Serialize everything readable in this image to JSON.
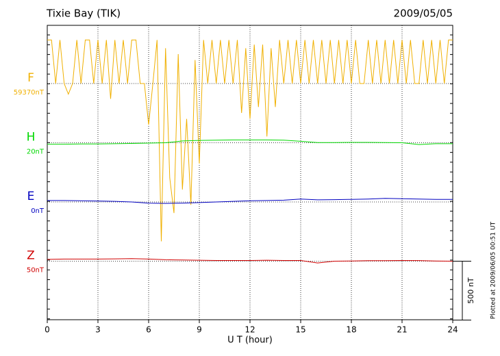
{
  "chart_data": {
    "type": "line",
    "title": "Tixie Bay (TIK)",
    "date": "2009/05/05",
    "xlabel": "U T (hour)",
    "footnote": "Plotted at 2009/06/05 00:51 UT",
    "xlim": [
      0,
      24
    ],
    "xticks": [
      0,
      3,
      6,
      9,
      12,
      15,
      18,
      21,
      24
    ],
    "grid": true,
    "scale_bar": {
      "value": 500,
      "label": "500 nT"
    },
    "series": [
      {
        "name": "F",
        "baseline_label": "59370nT",
        "color": "#f0b000",
        "x": [
          0,
          0.25,
          0.5,
          0.75,
          1,
          1.25,
          1.5,
          1.75,
          2,
          2.25,
          2.5,
          2.75,
          3,
          3.25,
          3.5,
          3.75,
          4,
          4.25,
          4.5,
          4.75,
          5,
          5.25,
          5.5,
          5.75,
          6,
          6.25,
          6.5,
          6.75,
          7,
          7.25,
          7.5,
          7.75,
          8,
          8.25,
          8.5,
          8.75,
          9,
          9.25,
          9.5,
          9.75,
          10,
          10.25,
          10.5,
          10.75,
          11,
          11.25,
          11.5,
          11.75,
          12,
          12.25,
          12.5,
          12.75,
          13,
          13.25,
          13.5,
          13.75,
          14,
          14.25,
          14.5,
          14.75,
          15,
          15.25,
          15.5,
          15.75,
          16,
          16.25,
          16.5,
          16.75,
          17,
          17.25,
          17.5,
          17.75,
          18,
          18.25,
          18.5,
          18.75,
          19,
          19.25,
          19.5,
          19.75,
          20,
          20.25,
          20.5,
          20.75,
          21,
          21.25,
          21.5,
          21.75,
          22,
          22.25,
          22.5,
          22.75,
          23,
          23.25,
          23.5,
          23.75,
          24
        ],
        "values": [
          370,
          370,
          0,
          370,
          0,
          -90,
          0,
          370,
          0,
          370,
          370,
          0,
          370,
          0,
          370,
          -130,
          370,
          0,
          370,
          0,
          370,
          370,
          0,
          0,
          -350,
          0,
          370,
          -1340,
          300,
          -800,
          -1100,
          250,
          -900,
          -300,
          -1030,
          200,
          -680,
          370,
          0,
          370,
          0,
          370,
          0,
          370,
          0,
          370,
          -250,
          300,
          -300,
          330,
          -200,
          330,
          -450,
          300,
          -200,
          370,
          0,
          370,
          0,
          370,
          0,
          370,
          0,
          370,
          0,
          370,
          0,
          370,
          0,
          370,
          0,
          370,
          0,
          370,
          0,
          0,
          370,
          0,
          370,
          0,
          370,
          0,
          370,
          0,
          370,
          0,
          370,
          0,
          0,
          370,
          0,
          370,
          0,
          370,
          0,
          370,
          370
        ]
      },
      {
        "name": "H",
        "baseline_label": "20nT",
        "color": "#00d800",
        "x": [
          0,
          1,
          2,
          3,
          4,
          5,
          6,
          7,
          8,
          9,
          10,
          11,
          12,
          13,
          14,
          15,
          16,
          17,
          18,
          19,
          20,
          21,
          22,
          23,
          24
        ],
        "values": [
          -12,
          -12,
          -10,
          -10,
          -8,
          -6,
          -3,
          0,
          15,
          20,
          22,
          24,
          24,
          24,
          22,
          12,
          2,
          2,
          3,
          3,
          2,
          0,
          -15,
          -8,
          -8
        ]
      },
      {
        "name": "E",
        "baseline_label": "0nT",
        "color": "#0000c0",
        "x": [
          0,
          1,
          2,
          3,
          4,
          5,
          6,
          7,
          8,
          9,
          10,
          11,
          12,
          13,
          14,
          15,
          16,
          17,
          18,
          19,
          20,
          21,
          22,
          23,
          24
        ],
        "values": [
          12,
          12,
          10,
          8,
          5,
          0,
          -10,
          -12,
          -10,
          -5,
          0,
          5,
          10,
          12,
          15,
          25,
          18,
          20,
          22,
          25,
          30,
          28,
          25,
          22,
          22
        ]
      },
      {
        "name": "Z",
        "baseline_label": "50nT",
        "color": "#d00000",
        "x": [
          0,
          1,
          2,
          3,
          4,
          5,
          6,
          7,
          8,
          9,
          10,
          11,
          12,
          13,
          14,
          15,
          16,
          17,
          18,
          19,
          20,
          21,
          22,
          23,
          24
        ],
        "values": [
          15,
          18,
          18,
          18,
          20,
          22,
          18,
          12,
          10,
          8,
          6,
          6,
          6,
          8,
          6,
          6,
          -15,
          0,
          2,
          4,
          4,
          6,
          5,
          2,
          0
        ]
      }
    ]
  }
}
